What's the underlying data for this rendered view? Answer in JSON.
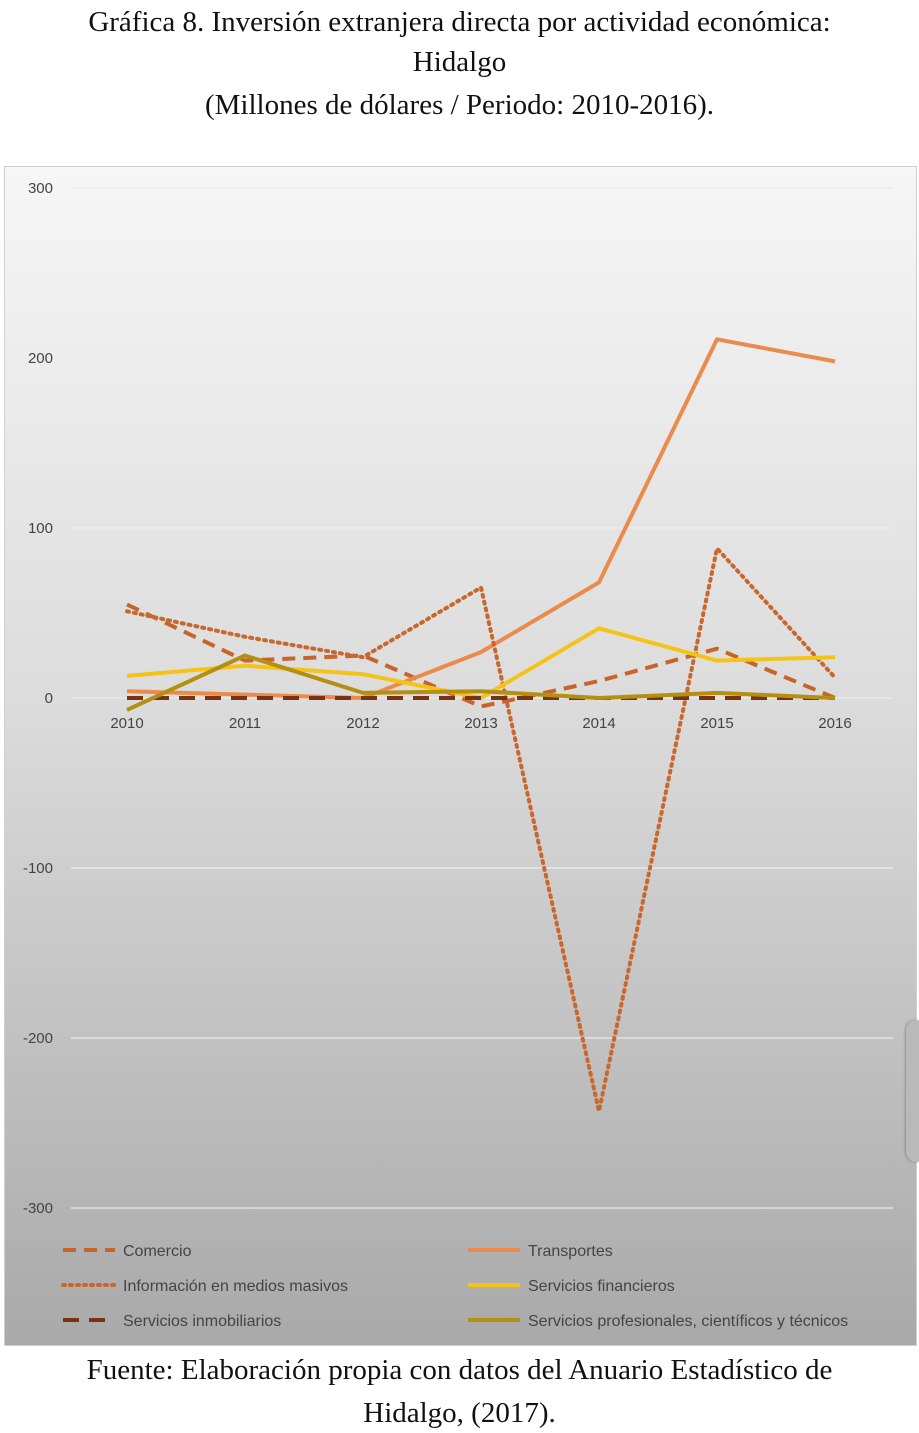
{
  "title": {
    "line1": "Gráfica 8. Inversión extranjera directa por actividad económica:",
    "line2": "Hidalgo",
    "line3": "(Millones de dólares / Periodo: 2010-2016)."
  },
  "source": {
    "line1": "Fuente: Elaboración propia con datos del Anuario Estadístico de",
    "line2": "Hidalgo, (2017)."
  },
  "chart_data": {
    "type": "line",
    "categories": [
      "2010",
      "2011",
      "2012",
      "2013",
      "2014",
      "2015",
      "2016"
    ],
    "yticks": [
      "300",
      "200",
      "100",
      "0",
      "-100",
      "-200",
      "-300"
    ],
    "ylim": [
      -300,
      300
    ],
    "grid": true,
    "legend_position": "bottom",
    "series": [
      {
        "name": "Comercio",
        "values": [
          55,
          22,
          25,
          -5,
          10,
          29,
          0
        ],
        "color": "#c8642a",
        "style": "dashed"
      },
      {
        "name": "Transportes",
        "values": [
          4,
          2,
          0,
          27,
          68,
          211,
          198
        ],
        "color": "#ec8a4c",
        "style": "solid"
      },
      {
        "name": "Información en medios masivos",
        "values": [
          51,
          36,
          24,
          65,
          -243,
          88,
          12
        ],
        "color": "#c8682e",
        "style": "dotted"
      },
      {
        "name": "Servicios financieros",
        "values": [
          13,
          19,
          14,
          0,
          41,
          22,
          24
        ],
        "color": "#f5c318",
        "style": "solid"
      },
      {
        "name": "Servicios inmobiliarios",
        "values": [
          0,
          0,
          0,
          0,
          0,
          0,
          0
        ],
        "color": "#7a3310",
        "style": "longdash"
      },
      {
        "name": "Servicios profesionales, científicos y técnicos",
        "values": [
          -7,
          25,
          3,
          4,
          0,
          3,
          0
        ],
        "color": "#b48f12",
        "style": "solid"
      }
    ]
  }
}
